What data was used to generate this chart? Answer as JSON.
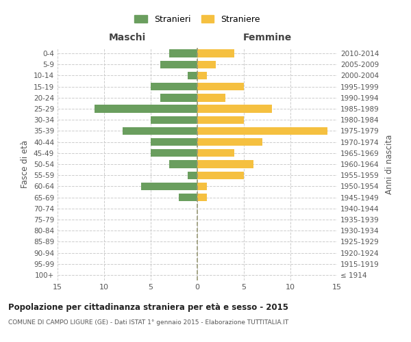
{
  "age_groups": [
    "100+",
    "95-99",
    "90-94",
    "85-89",
    "80-84",
    "75-79",
    "70-74",
    "65-69",
    "60-64",
    "55-59",
    "50-54",
    "45-49",
    "40-44",
    "35-39",
    "30-34",
    "25-29",
    "20-24",
    "15-19",
    "10-14",
    "5-9",
    "0-4"
  ],
  "birth_years": [
    "≤ 1914",
    "1915-1919",
    "1920-1924",
    "1925-1929",
    "1930-1934",
    "1935-1939",
    "1940-1944",
    "1945-1949",
    "1950-1954",
    "1955-1959",
    "1960-1964",
    "1965-1969",
    "1970-1974",
    "1975-1979",
    "1980-1984",
    "1985-1989",
    "1990-1994",
    "1995-1999",
    "2000-2004",
    "2005-2009",
    "2010-2014"
  ],
  "maschi": [
    0,
    0,
    0,
    0,
    0,
    0,
    0,
    2,
    6,
    1,
    3,
    5,
    5,
    8,
    5,
    11,
    4,
    5,
    1,
    4,
    3
  ],
  "femmine": [
    0,
    0,
    0,
    0,
    0,
    0,
    0,
    1,
    1,
    5,
    6,
    4,
    7,
    14,
    5,
    8,
    3,
    5,
    1,
    2,
    4
  ],
  "color_maschi": "#6a9e5e",
  "color_femmine": "#f5c040",
  "title": "Popolazione per cittadinanza straniera per età e sesso - 2015",
  "subtitle": "COMUNE DI CAMPO LIGURE (GE) - Dati ISTAT 1° gennaio 2015 - Elaborazione TUTTITALIA.IT",
  "legend_maschi": "Stranieri",
  "legend_femmine": "Straniere",
  "label_maschi": "Maschi",
  "label_femmine": "Femmine",
  "ylabel_left": "Fasce di età",
  "ylabel_right": "Anni di nascita",
  "xlim": 15,
  "bg_color": "#ffffff",
  "grid_color": "#cccccc"
}
